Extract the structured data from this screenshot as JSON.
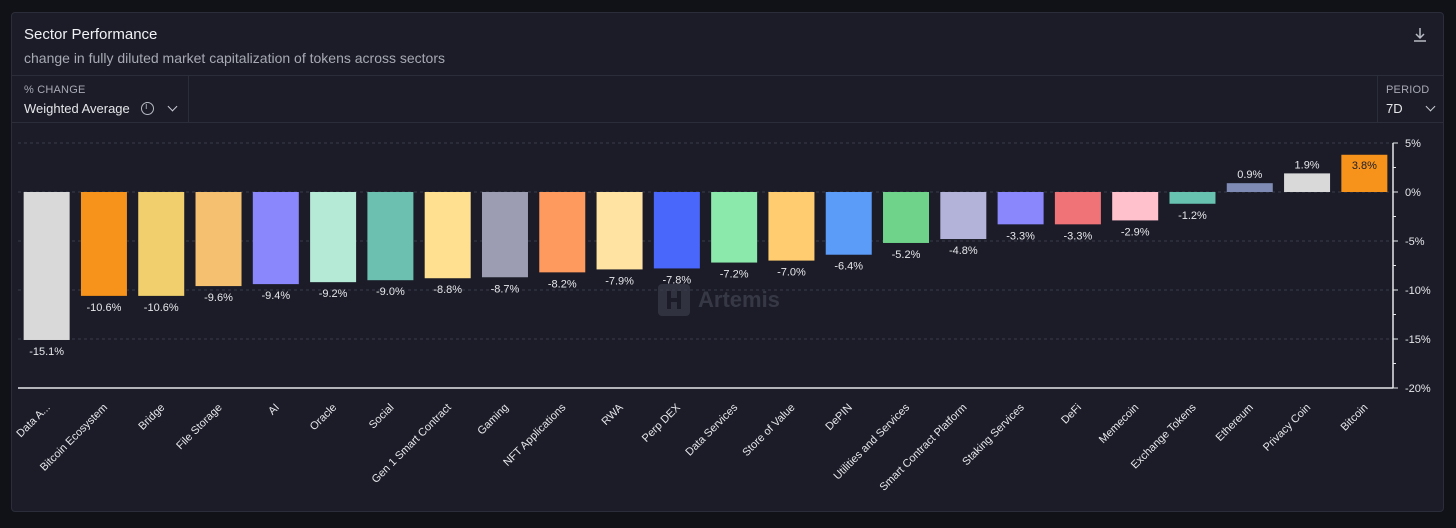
{
  "header": {
    "title": "Sector Performance",
    "subtitle": "change in fully diluted market capitalization of tokens across sectors"
  },
  "controls": {
    "metric_label": "% CHANGE",
    "metric_value": "Weighted Average",
    "period_label": "PERIOD",
    "period_value": "7D"
  },
  "watermark": "Artemis",
  "icons": [
    "download-icon",
    "info-icon",
    "chevron-down-icon"
  ],
  "chart_data": {
    "type": "bar",
    "categories": [
      "Data A...",
      "Bitcoin Ecosystem",
      "Bridge",
      "File Storage",
      "AI",
      "Oracle",
      "Social",
      "Gen 1 Smart Contract",
      "Gaming",
      "NFT Applications",
      "RWA",
      "Perp DEX",
      "Data Services",
      "Store of Value",
      "DePIN",
      "Utilities and Services",
      "Smart Contract Platform",
      "Staking Services",
      "DeFi",
      "Memecoin",
      "Exchange Tokens",
      "Ethereum",
      "Privacy Coin",
      "Bitcoin"
    ],
    "values": [
      -15.1,
      -10.6,
      -10.6,
      -9.6,
      -9.4,
      -9.2,
      -9.0,
      -8.8,
      -8.7,
      -8.2,
      -7.9,
      -7.8,
      -7.2,
      -7.0,
      -6.4,
      -5.2,
      -4.8,
      -3.3,
      -3.3,
      -2.9,
      -1.2,
      0.9,
      1.9,
      3.8
    ],
    "labels": [
      "-15.1%",
      "-10.6%",
      "-10.6%",
      "-9.6%",
      "-9.4%",
      "-9.2%",
      "-9.0%",
      "-8.8%",
      "-8.7%",
      "-8.2%",
      "-7.9%",
      "-7.8%",
      "-7.2%",
      "-7.0%",
      "-6.4%",
      "-5.2%",
      "-4.8%",
      "-3.3%",
      "-3.3%",
      "-2.9%",
      "-1.2%",
      "0.9%",
      "1.9%",
      "3.8%"
    ],
    "colors": [
      "#d9d9d9",
      "#f7931a",
      "#f0cf6c",
      "#f5c070",
      "#8a86fb",
      "#b5ead7",
      "#6cc0b0",
      "#ffdf90",
      "#9c9db2",
      "#ff9a5e",
      "#ffe3a3",
      "#4a67fb",
      "#8ce9ac",
      "#ffcc70",
      "#5b9cf8",
      "#6fd48a",
      "#b3b3da",
      "#8a86fb",
      "#f07378",
      "#ffc1cc",
      "#67c2b0",
      "#7f8bb5",
      "#d9d9d9",
      "#f7931a"
    ],
    "ylim": [
      -20,
      5
    ],
    "yticks": [
      5,
      0,
      -5,
      -10,
      -15,
      -20
    ],
    "ytick_labels": [
      "5%",
      "0%",
      "-5%",
      "-10%",
      "-15%",
      "-20%"
    ],
    "grid": true,
    "y_axis_side": "right"
  }
}
